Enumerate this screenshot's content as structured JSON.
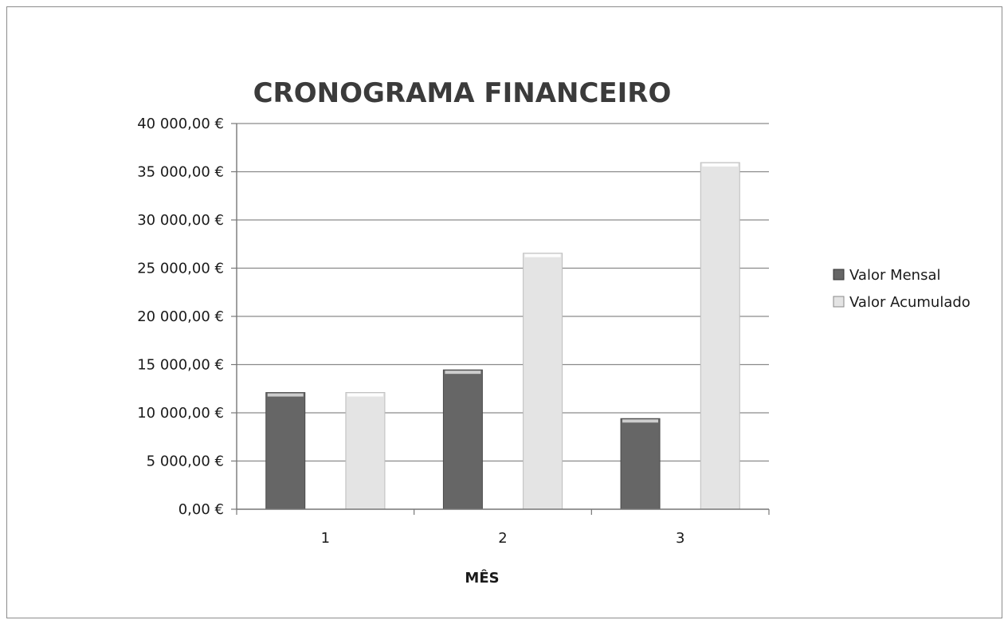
{
  "chart_data": {
    "type": "bar",
    "title": "CRONOGRAMA FINANCEIRO",
    "xlabel": "MÊS",
    "ylabel": "",
    "categories": [
      "1",
      "2",
      "3"
    ],
    "series": [
      {
        "name": "Valor Mensal",
        "values": [
          12100,
          14450,
          9400
        ],
        "color": "#666666"
      },
      {
        "name": "Valor Acumulado",
        "values": [
          12100,
          26550,
          35950
        ],
        "color": "#e4e4e4"
      }
    ],
    "ylim": [
      0,
      40000
    ],
    "yticks": [
      0,
      5000,
      10000,
      15000,
      20000,
      25000,
      30000,
      35000,
      40000
    ],
    "ytick_labels": [
      "0,00 €",
      "5 000,00 €",
      "10 000,00 €",
      "15 000,00 €",
      "20 000,00 €",
      "25 000,00 €",
      "30 000,00 €",
      "35 000,00 €",
      "40 000,00 €"
    ],
    "grid": true,
    "legend_position": "right"
  }
}
